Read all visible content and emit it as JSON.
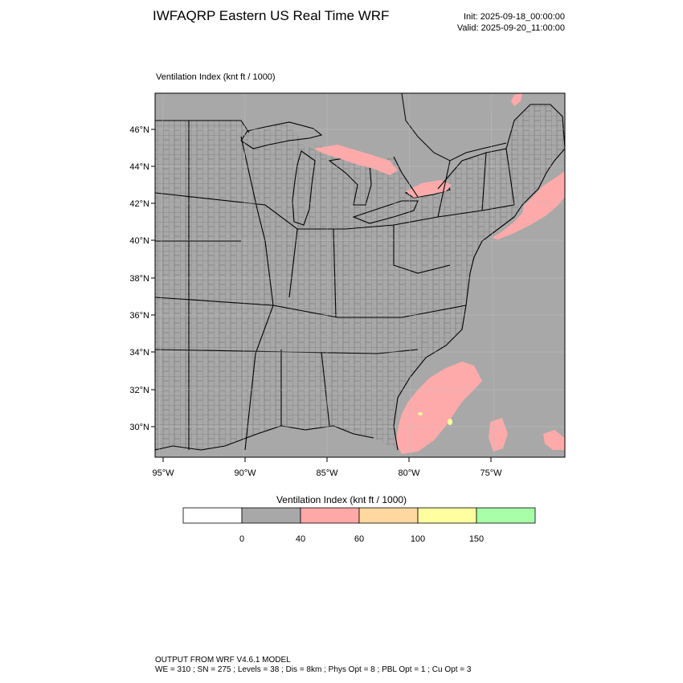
{
  "header": {
    "title": "IWFAQRP Eastern US Real Time WRF",
    "init": "Init: 2025-09-18_00:00:00",
    "valid": "Valid: 2025-09-20_11:00:00",
    "subtitle": "Ventilation Index   (knt ft / 1000)"
  },
  "map": {
    "lat_labels": [
      "46°N",
      "44°N",
      "42°N",
      "40°N",
      "38°N",
      "36°N",
      "34°N",
      "32°N",
      "30°N"
    ],
    "lon_labels": [
      "95°W",
      "90°W",
      "85°W",
      "80°W",
      "75°W"
    ],
    "land_color": "#a8a8a8",
    "water_color": "#a8a8a8",
    "highlight_color": "#ffaaaa",
    "yellow_color": "#ffff99"
  },
  "legend": {
    "title": "Ventilation Index  (knt ft / 1000)",
    "colors": [
      "#ffffff",
      "#a8a8a8",
      "#ffa8a8",
      "#ffd8a0",
      "#ffffa0",
      "#a8ffa8"
    ],
    "labels": [
      "0",
      "40",
      "60",
      "100",
      "150"
    ]
  },
  "footer": {
    "line1": "OUTPUT FROM WRF V4.6.1 MODEL",
    "line2": "WE = 310 ; SN = 275 ; Levels = 38 ; Dis = 8km ; Phys Opt = 8 ; PBL Opt = 1 ; Cu Opt = 3"
  }
}
